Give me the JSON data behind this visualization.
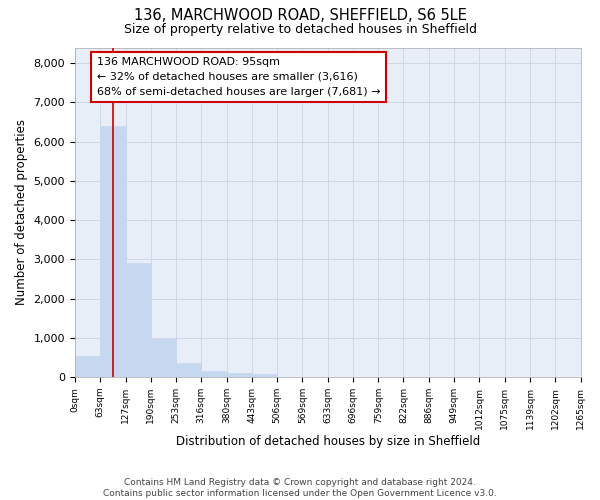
{
  "title_line1": "136, MARCHWOOD ROAD, SHEFFIELD, S6 5LE",
  "title_line2": "Size of property relative to detached houses in Sheffield",
  "xlabel": "Distribution of detached houses by size in Sheffield",
  "ylabel": "Number of detached properties",
  "bar_edges": [
    0,
    63,
    127,
    190,
    253,
    316,
    380,
    443,
    506,
    569,
    633,
    696,
    759,
    822,
    886,
    949,
    1012,
    1075,
    1139,
    1202,
    1265
  ],
  "bar_heights": [
    550,
    6400,
    2920,
    975,
    370,
    155,
    110,
    80,
    0,
    0,
    0,
    0,
    0,
    0,
    0,
    0,
    0,
    0,
    0,
    0
  ],
  "bar_color": "#c5d8f0",
  "bar_edgecolor": "#c5d8f0",
  "grid_color": "#d0d8e8",
  "background_color": "#e8eef8",
  "property_sqm": 95,
  "property_line_color": "#cc0000",
  "annotation_line1": "136 MARCHWOOD ROAD: 95sqm",
  "annotation_line2": "← 32% of detached houses are smaller (3,616)",
  "annotation_line3": "68% of semi-detached houses are larger (7,681) →",
  "annotation_box_edgecolor": "#cc0000",
  "annotation_box_facecolor": "#ffffff",
  "ylim": [
    0,
    8400
  ],
  "yticks": [
    0,
    1000,
    2000,
    3000,
    4000,
    5000,
    6000,
    7000,
    8000
  ],
  "footer_text": "Contains HM Land Registry data © Crown copyright and database right 2024.\nContains public sector information licensed under the Open Government Licence v3.0.",
  "tick_labels": [
    "0sqm",
    "63sqm",
    "127sqm",
    "190sqm",
    "253sqm",
    "316sqm",
    "380sqm",
    "443sqm",
    "506sqm",
    "569sqm",
    "633sqm",
    "696sqm",
    "759sqm",
    "822sqm",
    "886sqm",
    "949sqm",
    "1012sqm",
    "1075sqm",
    "1139sqm",
    "1202sqm",
    "1265sqm"
  ]
}
